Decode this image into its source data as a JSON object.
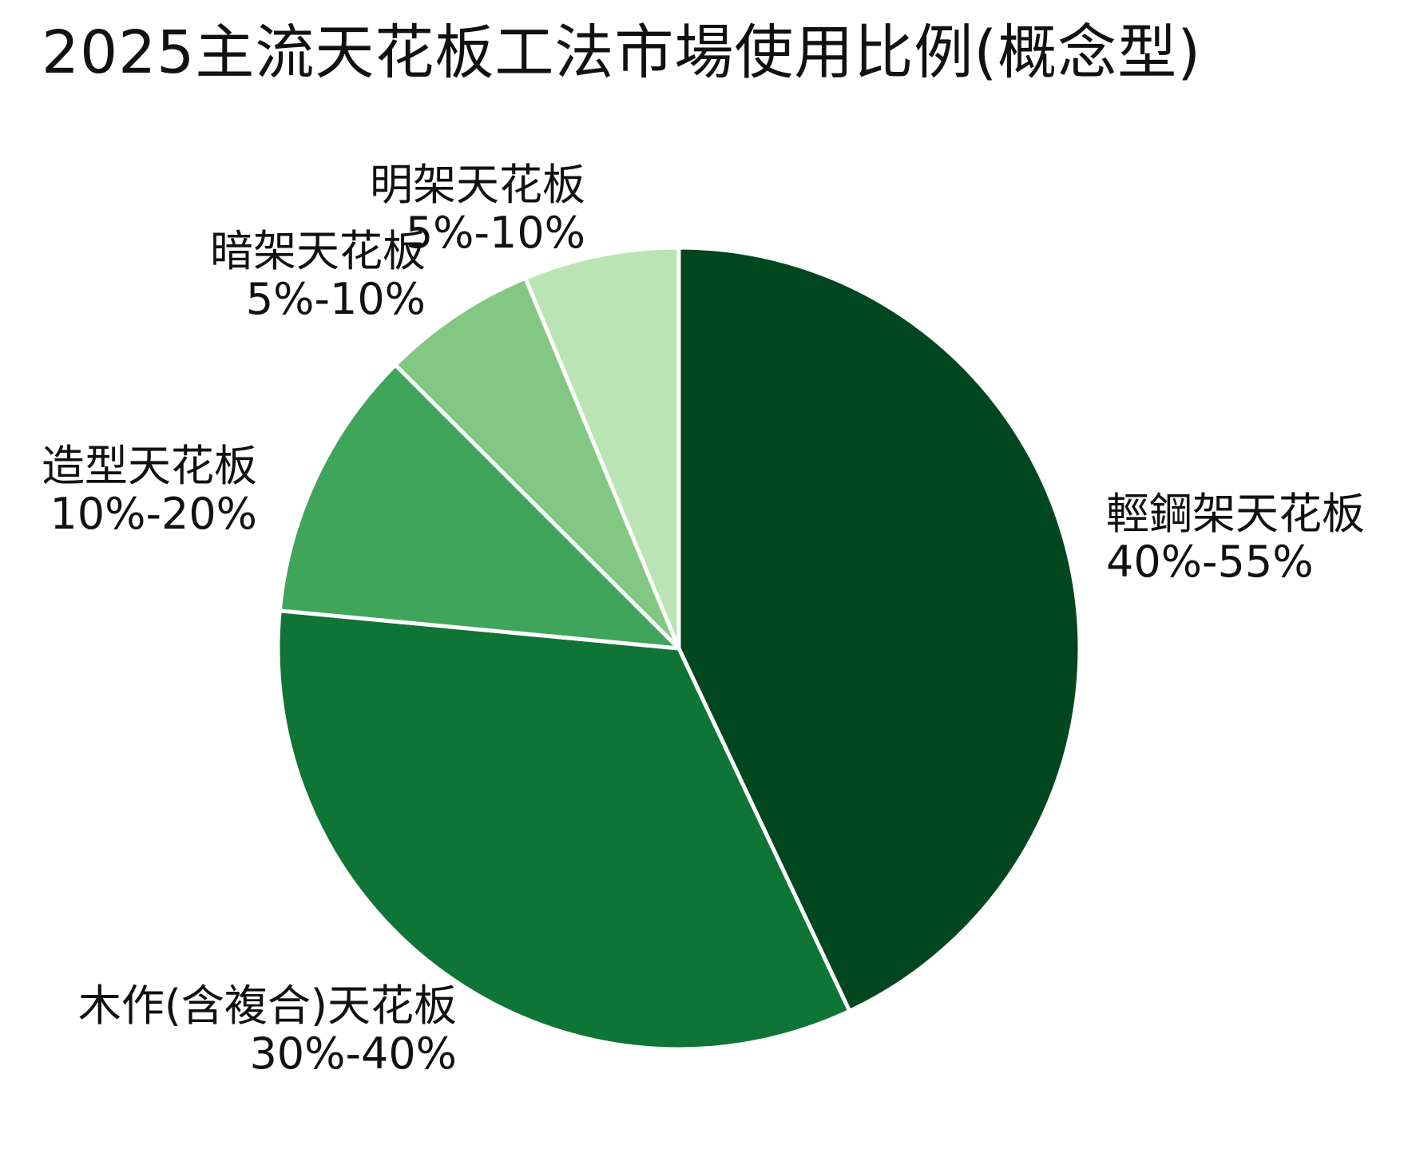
{
  "chart_data": {
    "type": "pie",
    "title": "2025主流天花板工法市場使用比例(概念型)",
    "start": "12 o'clock, clockwise",
    "slices": [
      {
        "name": "輕鋼架天花板",
        "range_label": "40%-55%",
        "value": 43.0,
        "color": "#00471f"
      },
      {
        "name": "木作(含複合)天花板",
        "range_label": "30%-40%",
        "value": 33.5,
        "color": "#0e7536"
      },
      {
        "name": "造型天花板",
        "range_label": "10%-20%",
        "value": 11.0,
        "color": "#3fa55b"
      },
      {
        "name": "暗架天花板",
        "range_label": "5%-10%",
        "value": 6.25,
        "color": "#82c883"
      },
      {
        "name": "明架天花板",
        "range_label": "5%-10%",
        "value": 6.25,
        "color": "#bae4b3"
      }
    ],
    "slice_border_color": "#ffffff",
    "legend": "none (labels beside slices)"
  }
}
